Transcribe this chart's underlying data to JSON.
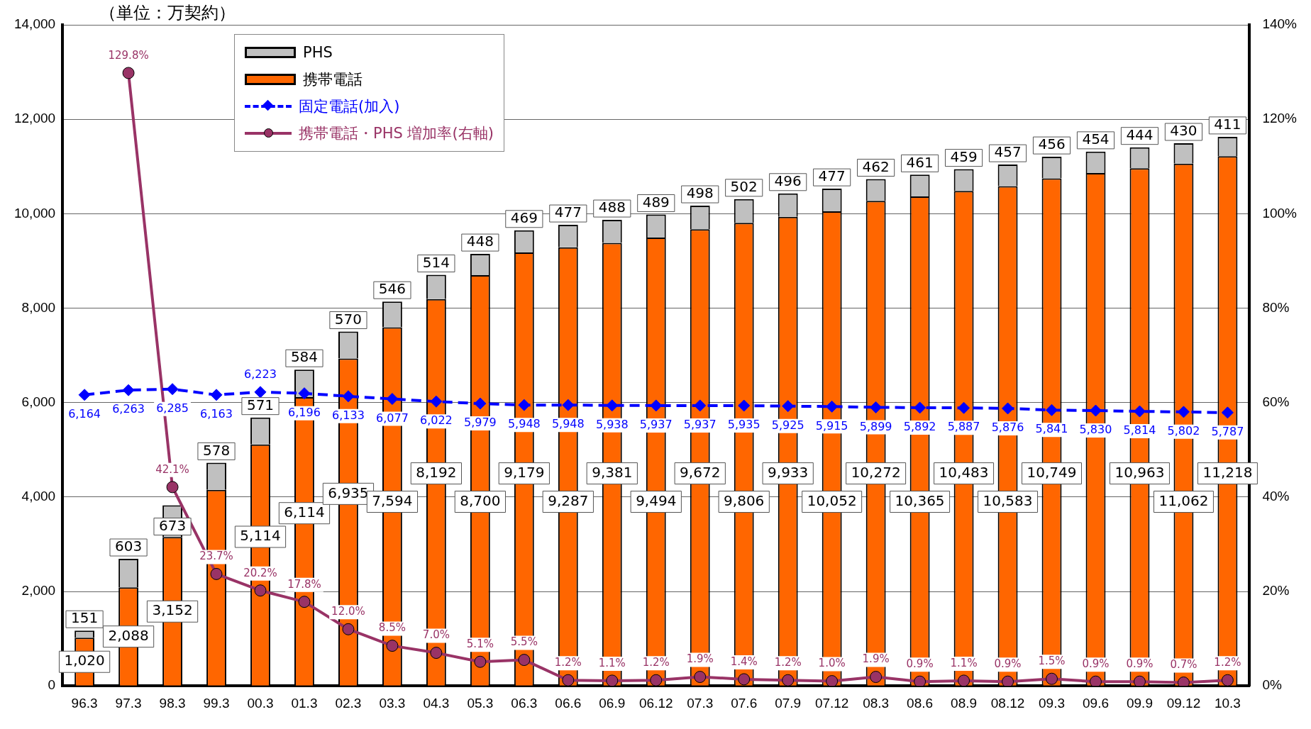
{
  "chart_data": {
    "type": "bar",
    "ylabel": "（単位：万契約）",
    "stacked": true,
    "grid": "y",
    "legend": "top left",
    "categories": [
      "96.3",
      "97.3",
      "98.3",
      "99.3",
      "00.3",
      "01.3",
      "02.3",
      "03.3",
      "04.3",
      "05.3",
      "06.3",
      "06.6",
      "06.9",
      "06.12",
      "07.3",
      "07.6",
      "07.9",
      "07.12",
      "08.3",
      "08.6",
      "08.9",
      "08.12",
      "09.3",
      "09.6",
      "09.9",
      "09.12",
      "10.3"
    ],
    "ylim": [
      0,
      14000
    ],
    "yticks": [
      0,
      {
        "value": 2000,
        "label": "2,000"
      },
      {
        "value": 4000,
        "label": "4,000"
      },
      {
        "value": 6000,
        "label": "6,000"
      },
      {
        "value": 8000,
        "label": "8,000"
      },
      {
        "value": 10000,
        "label": "10,000"
      },
      {
        "value": 12000,
        "label": "12,000"
      },
      {
        "value": 14000,
        "label": "14,000"
      }
    ],
    "y2lim": [
      0,
      140
    ],
    "y2ticks": [
      {
        "value": 0,
        "label": "0%"
      },
      {
        "value": 20,
        "label": "20%"
      },
      {
        "value": 40,
        "label": "40%"
      },
      {
        "value": 60,
        "label": "60%"
      },
      {
        "value": 80,
        "label": "80%"
      },
      {
        "value": 100,
        "label": "100%"
      },
      {
        "value": 120,
        "label": "120%"
      },
      {
        "value": 140,
        "label": "140%"
      }
    ],
    "series": [
      {
        "name": "携帯電話",
        "color": "#ff6600",
        "values": [
          1020,
          2088,
          3152,
          4150,
          5114,
          6114,
          6935,
          7594,
          8192,
          8700,
          9179,
          9287,
          9381,
          9494,
          9672,
          9806,
          9933,
          10052,
          10272,
          10365,
          10483,
          10583,
          10749,
          10860,
          10963,
          11062,
          11218
        ],
        "value_labels": [
          "1,020",
          "2,088",
          "3,152",
          null,
          "5,114",
          "6,114",
          "6,935",
          "7,594",
          "8,192",
          "8,700",
          "9,179",
          "9,287",
          "9,381",
          "9,494",
          "9,672",
          "9,806",
          "9,933",
          "10,052",
          "10,272",
          "10,365",
          "10,483",
          "10,583",
          "10,749",
          null,
          "10,963",
          "11,062",
          "11,218"
        ]
      },
      {
        "name": "PHS",
        "color": "#c0c0c0",
        "values": [
          151,
          603,
          673,
          578,
          571,
          584,
          570,
          546,
          514,
          448,
          469,
          477,
          488,
          489,
          498,
          502,
          496,
          477,
          462,
          461,
          459,
          457,
          456,
          454,
          444,
          430,
          411
        ],
        "value_labels": [
          "151",
          "603",
          "673",
          "578",
          "571",
          "584",
          "570",
          "546",
          "514",
          "448",
          "469",
          "477",
          "488",
          "489",
          "498",
          "502",
          "496",
          "477",
          "462",
          "461",
          "459",
          "457",
          "456",
          "454",
          "444",
          "430",
          "411"
        ]
      },
      {
        "name": "固定電話(加入)",
        "type": "line",
        "color": "#0000ff",
        "marker": "diamond",
        "line_style": "dashed",
        "values": [
          6164,
          6263,
          6285,
          6163,
          6223,
          6196,
          6133,
          6077,
          6022,
          5979,
          5948,
          5948,
          5938,
          5937,
          5937,
          5935,
          5925,
          5915,
          5899,
          5892,
          5887,
          5876,
          5841,
          5830,
          5814,
          5802,
          5787
        ],
        "value_labels": [
          "6,164",
          "6,263",
          "6,285",
          "6,163",
          "6,223",
          "6,196",
          "6,133",
          "6,077",
          "6,022",
          "5,979",
          "5,948",
          "5,948",
          "5,938",
          "5,937",
          "5,937",
          "5,935",
          "5,925",
          "5,915",
          "5,899",
          "5,892",
          "5,887",
          "5,876",
          "5,841",
          "5,830",
          "5,814",
          "5,802",
          "5,787"
        ]
      },
      {
        "name": "携帯電話・PHS  増加率(右軸)",
        "type": "line",
        "axis": "y2",
        "color": "#993366",
        "marker": "circle",
        "line_style": "solid",
        "values": [
          null,
          129.8,
          42.1,
          23.7,
          20.2,
          17.8,
          12.0,
          8.5,
          7.0,
          5.1,
          5.5,
          1.2,
          1.1,
          1.2,
          1.9,
          1.4,
          1.2,
          1.0,
          1.9,
          0.9,
          1.1,
          0.9,
          1.5,
          0.9,
          0.9,
          0.7,
          1.2
        ],
        "value_labels": [
          null,
          "129.8%",
          "42.1%",
          "23.7%",
          "20.2%",
          "17.8%",
          "12.0%",
          "8.5%",
          "7.0%",
          "5.1%",
          "5.5%",
          "1.2%",
          "1.1%",
          "1.2%",
          "1.9%",
          "1.4%",
          "1.2%",
          "1.0%",
          "1.9%",
          "0.9%",
          "1.1%",
          "0.9%",
          "1.5%",
          "0.9%",
          "0.9%",
          "0.7%",
          "1.2%"
        ]
      }
    ]
  }
}
